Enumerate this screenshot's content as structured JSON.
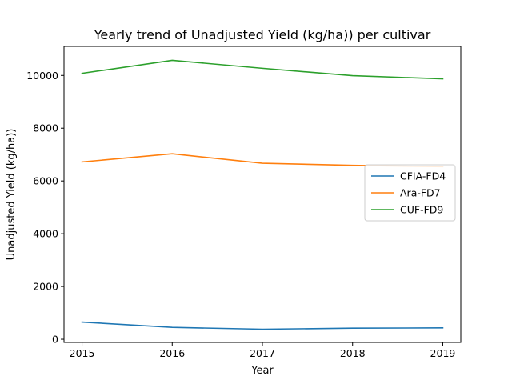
{
  "chart_data": {
    "type": "line",
    "title": "Yearly trend of Unadjusted Yield (kg/ha)) per cultivar",
    "xlabel": "Year",
    "ylabel": "Unadjusted Yield (kg/ha))",
    "x": [
      2015,
      2016,
      2017,
      2018,
      2019
    ],
    "x_ticks": [
      "2015",
      "2016",
      "2017",
      "2018",
      "2019"
    ],
    "xlim": [
      2014.8,
      2019.2
    ],
    "y_ticks": [
      0,
      2000,
      4000,
      6000,
      8000,
      10000
    ],
    "y_tick_labels": [
      "0",
      "2000",
      "4000",
      "6000",
      "8000",
      "10000"
    ],
    "ylim": [
      -120,
      11100
    ],
    "grid": false,
    "legend_position": "center-right",
    "series": [
      {
        "name": "CFIA-FD4",
        "color": "#1f77b4",
        "values": [
          650,
          450,
          380,
          420,
          430
        ]
      },
      {
        "name": "Ara-FD7",
        "color": "#ff7f0e",
        "values": [
          6720,
          7030,
          6670,
          6590,
          6540
        ]
      },
      {
        "name": "CUF-FD9",
        "color": "#2ca02c",
        "values": [
          10080,
          10570,
          10270,
          9990,
          9870
        ]
      }
    ]
  }
}
